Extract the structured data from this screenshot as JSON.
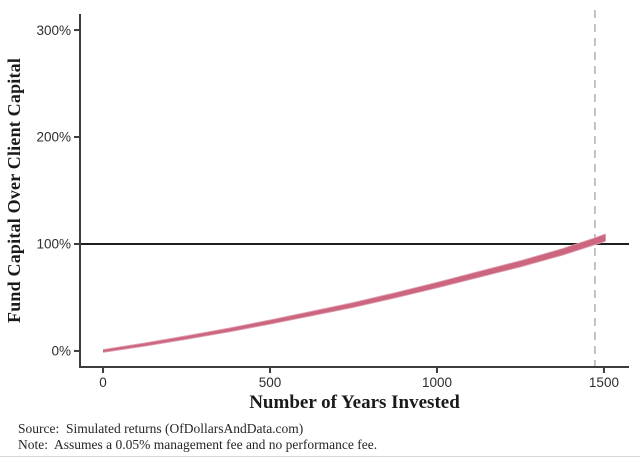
{
  "figure": {
    "source_line": "Source:  Simulated returns (OfDollarsAndData.com)",
    "note_line": "Note:  Assumes a 0.05% management fee and no performance fee."
  },
  "chart_data": {
    "type": "line",
    "title": "",
    "xlabel": "Number of Years Invested",
    "ylabel": "Fund Capital Over Client Capital",
    "xlim": [
      -69,
      1575
    ],
    "ylim": [
      -15,
      315
    ],
    "grid": false,
    "legend": "none",
    "x_ticks": [
      0,
      500,
      1000,
      1500
    ],
    "x_tick_labels": [
      "0",
      "500",
      "1000",
      "1500"
    ],
    "y_ticks": [
      0,
      100,
      200,
      300
    ],
    "y_tick_labels": [
      "0%",
      "100%",
      "200%",
      "300%"
    ],
    "series": [
      {
        "name": "simulated-fund-capital-share",
        "x": [
          0,
          125,
          250,
          375,
          500,
          625,
          750,
          875,
          1000,
          1125,
          1250,
          1375,
          1473,
          1505
        ],
        "y": [
          0,
          6,
          12.5,
          19.5,
          27,
          35,
          43,
          52,
          61.5,
          71.5,
          81.5,
          92.5,
          102.5,
          106
        ]
      }
    ],
    "reference_lines": {
      "hline_y": 100,
      "vline_x": 1473,
      "vline_style": "dashed"
    },
    "colors": {
      "line": "#cc667f",
      "line_edge": "#e1a0b2",
      "hline": "#1f1f1f",
      "vline": "#b4b4b4",
      "axis": "#3d3d3d",
      "tick_text": "#2e2e2e",
      "background": "#ffffff"
    }
  }
}
